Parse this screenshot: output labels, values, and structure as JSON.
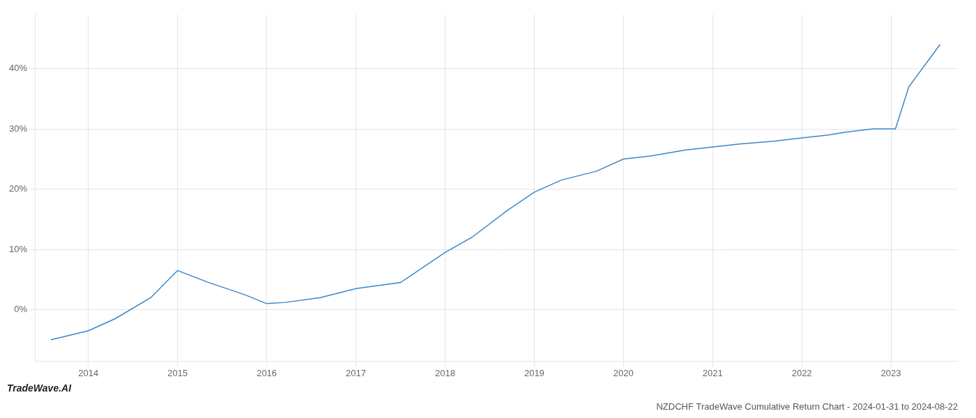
{
  "chart_data": {
    "type": "line",
    "title": "NZDCHF TradeWave Cumulative Return Chart - 2024-01-31 to 2024-08-22",
    "annotations": [
      "TradeWave.AI"
    ],
    "x": [
      2013.58,
      2014.0,
      2014.3,
      2014.7,
      2015.0,
      2015.35,
      2015.75,
      2016.0,
      2016.2,
      2016.6,
      2017.0,
      2017.5,
      2018.0,
      2018.3,
      2018.7,
      2019.0,
      2019.3,
      2019.7,
      2020.0,
      2020.3,
      2020.7,
      2021.0,
      2021.3,
      2021.7,
      2022.0,
      2022.3,
      2022.5,
      2022.8,
      2023.05,
      2023.2,
      2023.55
    ],
    "values": [
      -5.0,
      -3.5,
      -1.5,
      2.0,
      6.5,
      4.5,
      2.5,
      1.0,
      1.2,
      2.0,
      3.5,
      4.5,
      9.5,
      12.0,
      16.5,
      19.5,
      21.5,
      23.0,
      25.0,
      25.5,
      26.5,
      27.0,
      27.5,
      28.0,
      28.5,
      29.0,
      29.5,
      30.0,
      30.0,
      37.0,
      44.0
    ],
    "color": "#3a86c8",
    "xlim": [
      2013.4,
      2023.75
    ],
    "ylim": [
      -8.5,
      49
    ],
    "xticks": [
      2014,
      2015,
      2016,
      2017,
      2018,
      2019,
      2020,
      2021,
      2022,
      2023
    ],
    "yticks": [
      {
        "value": 0,
        "label": "0%"
      },
      {
        "value": 10,
        "label": "10%"
      },
      {
        "value": 20,
        "label": "20%"
      },
      {
        "value": 30,
        "label": "30%"
      },
      {
        "value": 40,
        "label": "40%"
      }
    ],
    "grid": true
  }
}
